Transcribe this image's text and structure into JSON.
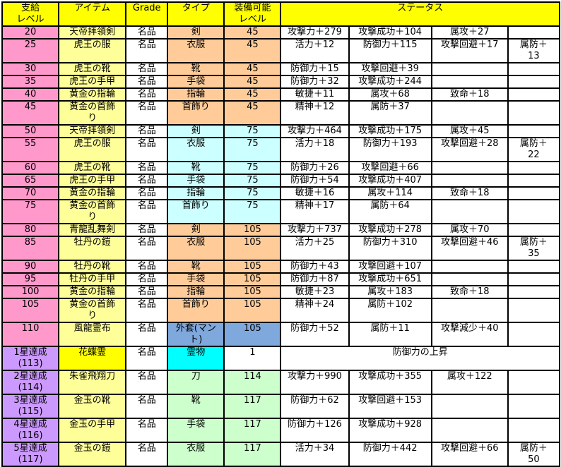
{
  "colors": {
    "header_yellow": "#FFFF00",
    "pink": "#FF99CC",
    "purple": "#CC99FF",
    "light_yellow": "#FFFF99",
    "yellow": "#FFFF00",
    "orange": "#FFCC99",
    "light_cyan": "#CCFFFF",
    "bright_cyan": "#00FFFF",
    "blue": "#7FA8DC",
    "green": "#CCFFCC",
    "white": "#FFFFFF",
    "border": "#000000"
  },
  "table": {
    "headers": {
      "supply_level": "支給\nレベル",
      "item": "アイテム",
      "grade": "Grade",
      "type": "タイプ",
      "equip_level": "装備可能\nレベル",
      "status": "ステータス"
    },
    "rows": [
      {
        "supply_level": "20",
        "item": "天帝拝領剣",
        "grade": "名品",
        "type": "剣",
        "equip_level": "45",
        "status": [
          "攻撃力＋279",
          "攻撃成功＋104",
          "属攻＋27",
          ""
        ],
        "bg": {
          "level": "pink",
          "item": "light_yellow",
          "type": "orange",
          "equip": "orange"
        }
      },
      {
        "supply_level": "25",
        "item": "虎王の服",
        "grade": "名品",
        "type": "衣服",
        "equip_level": "45",
        "status": [
          "活力＋12",
          "防御力＋115",
          "攻撃回避＋17",
          "属防＋\n13"
        ],
        "bg": {
          "level": "pink",
          "item": "light_yellow",
          "type": "orange",
          "equip": "orange"
        }
      },
      {
        "supply_level": "30",
        "item": "虎王の靴",
        "grade": "名品",
        "type": "靴",
        "equip_level": "45",
        "status": [
          "防御力＋15",
          "攻撃回避＋39",
          "",
          ""
        ],
        "bg": {
          "level": "pink",
          "item": "light_yellow",
          "type": "orange",
          "equip": "orange"
        }
      },
      {
        "supply_level": "35",
        "item": "虎王の手甲",
        "grade": "名品",
        "type": "手袋",
        "equip_level": "45",
        "status": [
          "防御力＋32",
          "攻撃成功＋244",
          "",
          ""
        ],
        "bg": {
          "level": "pink",
          "item": "light_yellow",
          "type": "orange",
          "equip": "orange"
        }
      },
      {
        "supply_level": "40",
        "item": "黄金の指輪",
        "grade": "名品",
        "type": "指輪",
        "equip_level": "45",
        "status": [
          "敏捷＋11",
          "属攻＋68",
          "致命＋18",
          ""
        ],
        "bg": {
          "level": "pink",
          "item": "light_yellow",
          "type": "orange",
          "equip": "orange"
        }
      },
      {
        "supply_level": "45",
        "item": "黄金の首飾\nり",
        "grade": "名品",
        "type": "首飾り",
        "equip_level": "45",
        "status": [
          "精神＋12",
          "属防＋37",
          "",
          ""
        ],
        "bg": {
          "level": "pink",
          "item": "light_yellow",
          "type": "orange",
          "equip": "orange"
        }
      },
      {
        "supply_level": "50",
        "item": "天帝拝領剣",
        "grade": "名品",
        "type": "剣",
        "equip_level": "75",
        "status": [
          "攻撃力＋464",
          "攻撃成功＋175",
          "属攻＋45",
          ""
        ],
        "bg": {
          "level": "pink",
          "item": "light_yellow",
          "type": "light_cyan",
          "equip": "light_cyan"
        }
      },
      {
        "supply_level": "55",
        "item": "虎王の服",
        "grade": "名品",
        "type": "衣服",
        "equip_level": "75",
        "status": [
          "活力＋18",
          "防御力＋193",
          "攻撃回避＋28",
          "属防＋\n22"
        ],
        "bg": {
          "level": "pink",
          "item": "light_yellow",
          "type": "light_cyan",
          "equip": "light_cyan"
        }
      },
      {
        "supply_level": "60",
        "item": "虎王の靴",
        "grade": "名品",
        "type": "靴",
        "equip_level": "75",
        "status": [
          "防御力＋26",
          "攻撃回避＋66",
          "",
          ""
        ],
        "bg": {
          "level": "pink",
          "item": "light_yellow",
          "type": "light_cyan",
          "equip": "light_cyan"
        }
      },
      {
        "supply_level": "65",
        "item": "虎王の手甲",
        "grade": "名品",
        "type": "手袋",
        "equip_level": "75",
        "status": [
          "防御力＋54",
          "攻撃成功＋407",
          "",
          ""
        ],
        "bg": {
          "level": "pink",
          "item": "light_yellow",
          "type": "light_cyan",
          "equip": "light_cyan"
        }
      },
      {
        "supply_level": "70",
        "item": "黄金の指輪",
        "grade": "名品",
        "type": "指輪",
        "equip_level": "75",
        "status": [
          "敏捷＋16",
          "属攻＋114",
          "致命＋18",
          ""
        ],
        "bg": {
          "level": "pink",
          "item": "light_yellow",
          "type": "light_cyan",
          "equip": "light_cyan"
        }
      },
      {
        "supply_level": "75",
        "item": "黄金の首飾\nり",
        "grade": "名品",
        "type": "首飾り",
        "equip_level": "75",
        "status": [
          "精神＋17",
          "属防＋64",
          "",
          ""
        ],
        "bg": {
          "level": "pink",
          "item": "light_yellow",
          "type": "light_cyan",
          "equip": "light_cyan"
        }
      },
      {
        "supply_level": "80",
        "item": "青龍乱舞剣",
        "grade": "名品",
        "type": "剣",
        "equip_level": "105",
        "status": [
          "攻撃力＋737",
          "攻撃成功＋278",
          "属攻＋70",
          ""
        ],
        "bg": {
          "level": "pink",
          "item": "light_yellow",
          "type": "orange",
          "equip": "orange"
        }
      },
      {
        "supply_level": "85",
        "item": "牡丹の鎧",
        "grade": "名品",
        "type": "衣服",
        "equip_level": "105",
        "status": [
          "活力＋25",
          "防御力＋310",
          "攻撃回避＋46",
          "属防＋\n35"
        ],
        "bg": {
          "level": "pink",
          "item": "light_yellow",
          "type": "orange",
          "equip": "orange"
        }
      },
      {
        "supply_level": "90",
        "item": "牡丹の靴",
        "grade": "名品",
        "type": "靴",
        "equip_level": "105",
        "status": [
          "防御力＋43",
          "攻撃回避＋107",
          "",
          ""
        ],
        "bg": {
          "level": "pink",
          "item": "light_yellow",
          "type": "orange",
          "equip": "orange"
        }
      },
      {
        "supply_level": "95",
        "item": "牡丹の手甲",
        "grade": "名品",
        "type": "手袋",
        "equip_level": "105",
        "status": [
          "防御力＋87",
          "攻撃成功＋651",
          "",
          ""
        ],
        "bg": {
          "level": "pink",
          "item": "light_yellow",
          "type": "orange",
          "equip": "orange"
        }
      },
      {
        "supply_level": "100",
        "item": "黄金の指輪",
        "grade": "名品",
        "type": "指輪",
        "equip_level": "105",
        "status": [
          "敏捷＋23",
          "属攻＋183",
          "致命＋18",
          ""
        ],
        "bg": {
          "level": "pink",
          "item": "light_yellow",
          "type": "orange",
          "equip": "orange"
        }
      },
      {
        "supply_level": "105",
        "item": "黄金の首飾\nり",
        "grade": "名品",
        "type": "首飾り",
        "equip_level": "105",
        "status": [
          "精神＋24",
          "属防＋102",
          "",
          ""
        ],
        "bg": {
          "level": "pink",
          "item": "light_yellow",
          "type": "orange",
          "equip": "orange"
        }
      },
      {
        "supply_level": "110",
        "item": "風龍霊布",
        "grade": "名品",
        "type": "外套(マン\nト)",
        "equip_level": "105",
        "status": [
          "防御力＋52",
          "属防＋11",
          "攻撃減少＋40",
          ""
        ],
        "bg": {
          "level": "pink",
          "item": "light_yellow",
          "type": "blue",
          "equip": "blue"
        }
      },
      {
        "supply_level": "1星達成\n(113)",
        "item": "花蝶霊",
        "grade": "名品",
        "type": "霊物",
        "equip_level": "1",
        "status_merged": "防御力の上昇",
        "bg": {
          "level": "purple",
          "item": "yellow",
          "type": "bright_cyan",
          "equip": "white"
        }
      },
      {
        "supply_level": "2星達成\n(114)",
        "item": "朱雀飛翔刀",
        "grade": "名品",
        "type": "刀",
        "equip_level": "114",
        "status": [
          "攻撃力＋990",
          "攻撃成功＋355",
          "属攻＋122",
          ""
        ],
        "bg": {
          "level": "purple",
          "item": "light_yellow",
          "type": "green",
          "equip": "green"
        }
      },
      {
        "supply_level": "3星達成\n(115)",
        "item": "金玉の靴",
        "grade": "名品",
        "type": "靴",
        "equip_level": "117",
        "status": [
          "防御力＋62",
          "攻撃回避＋153",
          "",
          ""
        ],
        "bg": {
          "level": "purple",
          "item": "light_yellow",
          "type": "green",
          "equip": "green"
        }
      },
      {
        "supply_level": "4星達成\n(116)",
        "item": "金玉の手甲",
        "grade": "名品",
        "type": "手袋",
        "equip_level": "117",
        "status": [
          "防御力＋126",
          "攻撃成功＋928",
          "",
          ""
        ],
        "bg": {
          "level": "purple",
          "item": "light_yellow",
          "type": "green",
          "equip": "green"
        }
      },
      {
        "supply_level": "5星達成\n(117)",
        "item": "金玉の鎧",
        "grade": "名品",
        "type": "衣服",
        "equip_level": "117",
        "status": [
          "活力＋34",
          "防御力＋442",
          "攻撃回避＋66",
          "属防＋\n50"
        ],
        "bg": {
          "level": "purple",
          "item": "light_yellow",
          "type": "green",
          "equip": "green"
        }
      }
    ]
  }
}
